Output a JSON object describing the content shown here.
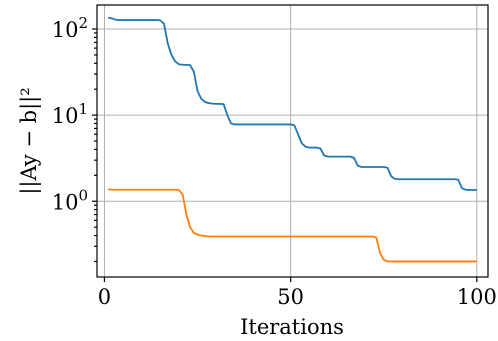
{
  "chart_data": {
    "type": "line",
    "title": "",
    "xlabel": "Iterations",
    "ylabel": "||Ay − b||²",
    "yscale": "log",
    "xlim": [
      -2,
      103
    ],
    "ylim": [
      0.132,
      190
    ],
    "grid": true,
    "legend": "none",
    "x_ticks": [
      {
        "value": 0,
        "label": "0"
      },
      {
        "value": 50,
        "label": "50"
      },
      {
        "value": 100,
        "label": "100"
      }
    ],
    "y_ticks": [
      {
        "value": 1,
        "base": "10",
        "exp": "0"
      },
      {
        "value": 10,
        "base": "10",
        "exp": "1"
      },
      {
        "value": 100,
        "base": "10",
        "exp": "2"
      }
    ],
    "series": [
      {
        "color": "#1f77b4",
        "points": [
          [
            1,
            135
          ],
          [
            2,
            133
          ],
          [
            3,
            128
          ],
          [
            4,
            127
          ],
          [
            5,
            127
          ],
          [
            6,
            127
          ],
          [
            7,
            127
          ],
          [
            8,
            127
          ],
          [
            9,
            127
          ],
          [
            10,
            127
          ],
          [
            11,
            127
          ],
          [
            12,
            127
          ],
          [
            13,
            127
          ],
          [
            14,
            127
          ],
          [
            15,
            126
          ],
          [
            16,
            115
          ],
          [
            17,
            68
          ],
          [
            18,
            50
          ],
          [
            19,
            42
          ],
          [
            20,
            39
          ],
          [
            21,
            38.5
          ],
          [
            22,
            38.3
          ],
          [
            23,
            38
          ],
          [
            24,
            32
          ],
          [
            25,
            19
          ],
          [
            26,
            15.5
          ],
          [
            27,
            14.2
          ],
          [
            28,
            13.8
          ],
          [
            29,
            13.6
          ],
          [
            30,
            13.5
          ],
          [
            31,
            13.5
          ],
          [
            32,
            13.4
          ],
          [
            33,
            10
          ],
          [
            34,
            8
          ],
          [
            35,
            7.8
          ],
          [
            36,
            7.8
          ],
          [
            37,
            7.8
          ],
          [
            38,
            7.8
          ],
          [
            39,
            7.8
          ],
          [
            40,
            7.8
          ],
          [
            41,
            7.8
          ],
          [
            42,
            7.8
          ],
          [
            43,
            7.8
          ],
          [
            44,
            7.8
          ],
          [
            45,
            7.8
          ],
          [
            46,
            7.8
          ],
          [
            47,
            7.8
          ],
          [
            48,
            7.8
          ],
          [
            49,
            7.8
          ],
          [
            50,
            7.8
          ],
          [
            51,
            7.6
          ],
          [
            52,
            6
          ],
          [
            53,
            4.7
          ],
          [
            54,
            4.3
          ],
          [
            55,
            4.2
          ],
          [
            56,
            4.2
          ],
          [
            57,
            4.2
          ],
          [
            58,
            4.1
          ],
          [
            59,
            3.4
          ],
          [
            60,
            3.3
          ],
          [
            61,
            3.3
          ],
          [
            62,
            3.3
          ],
          [
            63,
            3.3
          ],
          [
            64,
            3.3
          ],
          [
            65,
            3.3
          ],
          [
            66,
            3.3
          ],
          [
            67,
            3.2
          ],
          [
            68,
            2.6
          ],
          [
            69,
            2.5
          ],
          [
            70,
            2.5
          ],
          [
            71,
            2.5
          ],
          [
            72,
            2.5
          ],
          [
            73,
            2.5
          ],
          [
            74,
            2.5
          ],
          [
            75,
            2.5
          ],
          [
            76,
            2.45
          ],
          [
            77,
            1.95
          ],
          [
            78,
            1.82
          ],
          [
            79,
            1.8
          ],
          [
            80,
            1.8
          ],
          [
            81,
            1.8
          ],
          [
            82,
            1.8
          ],
          [
            83,
            1.8
          ],
          [
            84,
            1.8
          ],
          [
            85,
            1.8
          ],
          [
            86,
            1.8
          ],
          [
            87,
            1.8
          ],
          [
            88,
            1.8
          ],
          [
            89,
            1.8
          ],
          [
            90,
            1.8
          ],
          [
            91,
            1.8
          ],
          [
            92,
            1.8
          ],
          [
            93,
            1.8
          ],
          [
            94,
            1.8
          ],
          [
            95,
            1.78
          ],
          [
            96,
            1.42
          ],
          [
            97,
            1.36
          ],
          [
            98,
            1.35
          ],
          [
            99,
            1.35
          ],
          [
            100,
            1.35
          ]
        ]
      },
      {
        "color": "#ff7f0e",
        "points": [
          [
            1,
            1.38
          ],
          [
            2,
            1.36
          ],
          [
            3,
            1.36
          ],
          [
            5,
            1.36
          ],
          [
            10,
            1.36
          ],
          [
            15,
            1.36
          ],
          [
            18,
            1.36
          ],
          [
            19,
            1.36
          ],
          [
            20,
            1.35
          ],
          [
            21,
            1.2
          ],
          [
            22,
            0.7
          ],
          [
            23,
            0.5
          ],
          [
            24,
            0.43
          ],
          [
            25,
            0.41
          ],
          [
            26,
            0.4
          ],
          [
            27,
            0.395
          ],
          [
            28,
            0.39
          ],
          [
            30,
            0.39
          ],
          [
            35,
            0.39
          ],
          [
            40,
            0.39
          ],
          [
            50,
            0.39
          ],
          [
            60,
            0.39
          ],
          [
            70,
            0.39
          ],
          [
            72,
            0.39
          ],
          [
            73,
            0.38
          ],
          [
            74,
            0.25
          ],
          [
            75,
            0.21
          ],
          [
            76,
            0.2
          ],
          [
            78,
            0.2
          ],
          [
            80,
            0.2
          ],
          [
            90,
            0.2
          ],
          [
            100,
            0.2
          ]
        ]
      }
    ]
  }
}
